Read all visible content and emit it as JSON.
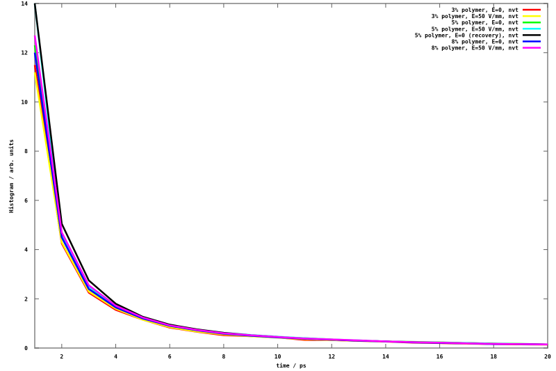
{
  "chart_data": {
    "type": "line",
    "title": "",
    "xlabel": "time / ps",
    "ylabel": "Histogram / arb. units",
    "xlim": [
      1,
      20
    ],
    "ylim": [
      0,
      14
    ],
    "xticks": [
      2,
      4,
      6,
      8,
      10,
      12,
      14,
      16,
      18,
      20
    ],
    "yticks": [
      0,
      2,
      4,
      6,
      8,
      10,
      12,
      14
    ],
    "grid": false,
    "legend_position": "top-right",
    "x": [
      1,
      2,
      3,
      4,
      5,
      6,
      7,
      8,
      9,
      10,
      11,
      12,
      13,
      14,
      15,
      16,
      17,
      18,
      19,
      20
    ],
    "series": [
      {
        "name": "3% polymer, E=0, nvt",
        "color": "#ff0000",
        "values": [
          11.5,
          4.25,
          2.25,
          1.55,
          1.15,
          0.83,
          0.66,
          0.52,
          0.48,
          0.43,
          0.33,
          0.32,
          0.29,
          0.26,
          0.22,
          0.2,
          0.18,
          0.16,
          0.15,
          0.14
        ]
      },
      {
        "name": "3% polymer, E=50 V/mm, nvt",
        "color": "#ffff00",
        "values": [
          11.2,
          4.3,
          2.3,
          1.6,
          1.15,
          0.85,
          0.67,
          0.55,
          0.48,
          0.42,
          0.36,
          0.32,
          0.3,
          0.27,
          0.24,
          0.22,
          0.2,
          0.18,
          0.16,
          0.15
        ]
      },
      {
        "name": "5% polymer, E=0, nvt",
        "color": "#00ff00",
        "values": [
          12.3,
          4.5,
          2.4,
          1.7,
          1.22,
          0.9,
          0.72,
          0.6,
          0.52,
          0.45,
          0.4,
          0.35,
          0.3,
          0.27,
          0.25,
          0.23,
          0.2,
          0.18,
          0.17,
          0.15
        ]
      },
      {
        "name": "5% polymer, E=50 V/mm, nvt",
        "color": "#00ffff",
        "values": [
          14.0,
          4.6,
          2.5,
          1.72,
          1.25,
          0.93,
          0.75,
          0.62,
          0.53,
          0.46,
          0.4,
          0.35,
          0.31,
          0.27,
          0.24,
          0.22,
          0.2,
          0.18,
          0.16,
          0.15
        ]
      },
      {
        "name": "5% polymer, E=0 (recovery), nvt",
        "color": "#000000",
        "values": [
          14.0,
          5.05,
          2.75,
          1.8,
          1.27,
          0.95,
          0.76,
          0.62,
          0.52,
          0.45,
          0.38,
          0.34,
          0.3,
          0.27,
          0.24,
          0.21,
          0.19,
          0.17,
          0.16,
          0.15
        ]
      },
      {
        "name": "8% polymer, E=0, nvt",
        "color": "#0000ff",
        "values": [
          12.0,
          4.5,
          2.4,
          1.65,
          1.2,
          0.9,
          0.72,
          0.58,
          0.5,
          0.43,
          0.38,
          0.34,
          0.3,
          0.27,
          0.23,
          0.21,
          0.19,
          0.16,
          0.16,
          0.15
        ]
      },
      {
        "name": "8% polymer, E=50 V/mm, nvt",
        "color": "#ff00ff",
        "values": [
          12.7,
          4.7,
          2.55,
          1.72,
          1.24,
          0.92,
          0.74,
          0.6,
          0.52,
          0.45,
          0.39,
          0.35,
          0.31,
          0.27,
          0.24,
          0.22,
          0.19,
          0.17,
          0.16,
          0.15
        ]
      }
    ]
  }
}
